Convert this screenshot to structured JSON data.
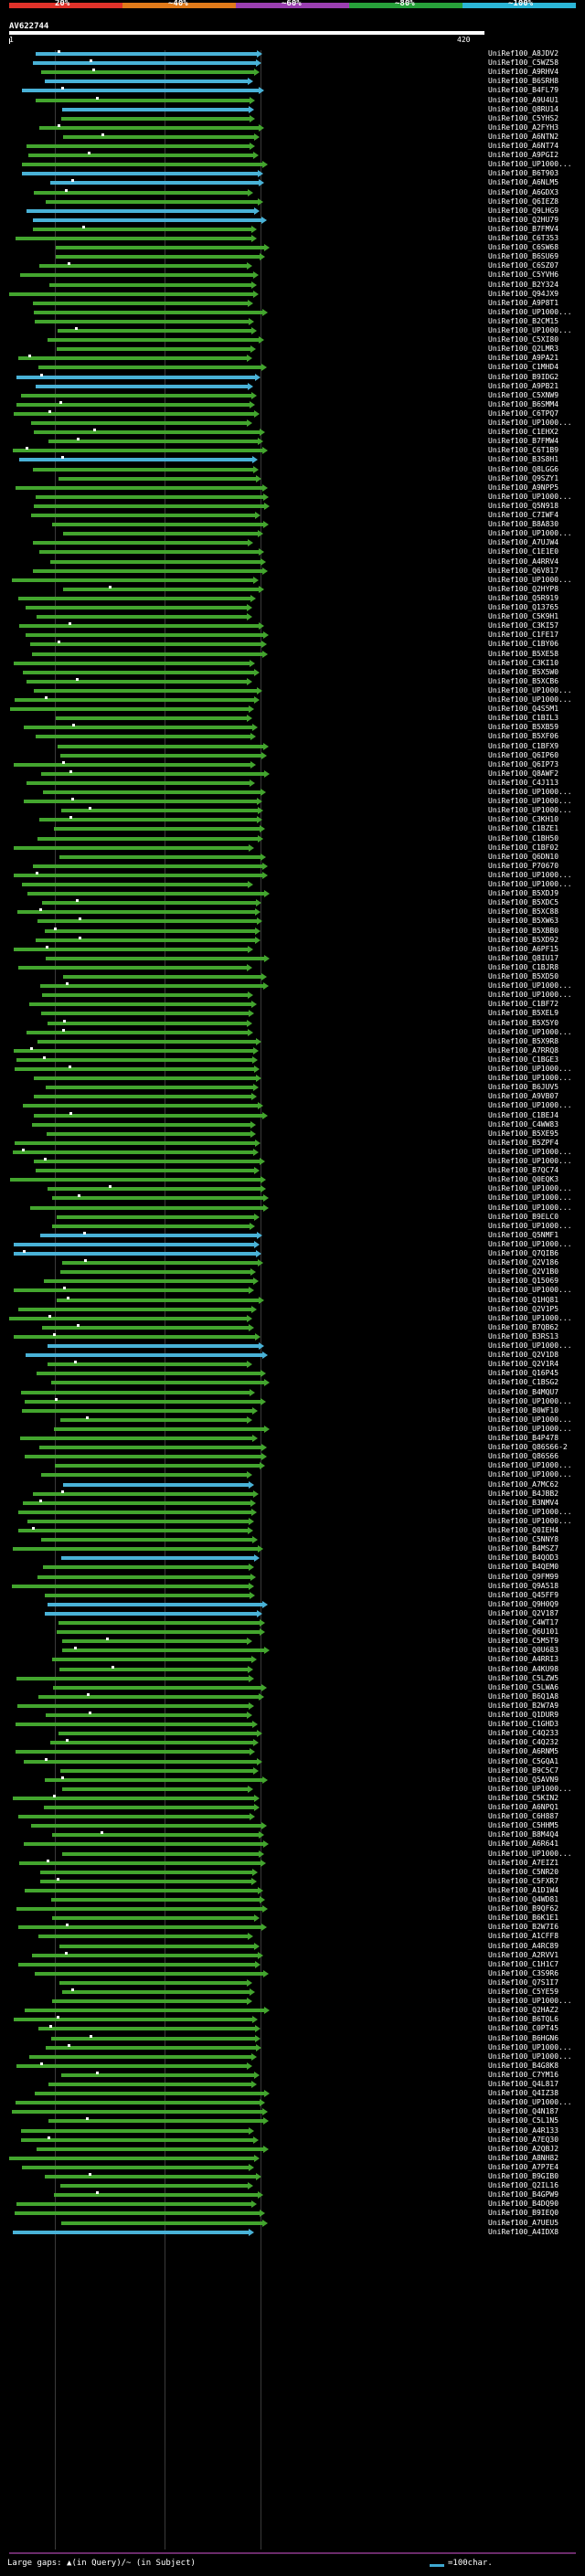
{
  "scale": {
    "labels": [
      "20%",
      "~40%",
      "~60%",
      "~80%",
      "~100%"
    ],
    "colors": [
      "#e0322a",
      "#e07a1a",
      "#9a3fb0",
      "#27a03a",
      "#2bb5d6"
    ]
  },
  "query": {
    "name": "AV622744",
    "start": "1",
    "end": "420"
  },
  "colors": {
    "green": "#43a52e",
    "blue": "#49b2d7",
    "line": "#3a3a3a"
  },
  "hits": [
    "UniRef100_A8JDV2",
    "UniRef100_C5WZ58",
    "UniRef100_A9RHV4",
    "UniRef100_B6SRH8",
    "UniRef100_B4FL79",
    "UniRef100_A9U4U1",
    "UniRef100_Q8RU14",
    "UniRef100_C5YHS2",
    "UniRef100_A2FYH3",
    "UniRef100_A6NTN2",
    "UniRef100_A6NT74",
    "UniRef100_A9PGI2",
    "UniRef100_UP1000...",
    "UniRef100_B6T903",
    "UniRef100_A6NLM5",
    "UniRef100_A6GDX3",
    "UniRef100_Q6IEZ8",
    "UniRef100_Q9LHG9",
    "UniRef100_Q2HU79",
    "UniRef100_B7FMV4",
    "UniRef100_C6T353",
    "UniRef100_C6SW68",
    "UniRef100_B6SU69",
    "UniRef100_C6SZ07",
    "UniRef100_C5YVH6",
    "UniRef100_B2Y324",
    "UniRef100_Q94JX9",
    "UniRef100_A9P8T1",
    "UniRef100_UP1000...",
    "UniRef100_B2CM15",
    "UniRef100_UP1000...",
    "UniRef100_C5XI80",
    "UniRef100_Q2LMR3",
    "UniRef100_A9PA21",
    "UniRef100_C1MHD4",
    "UniRef100_B9IDG2",
    "UniRef100_A9PB21",
    "UniRef100_C5XNW9",
    "UniRef100_B6SMM4",
    "UniRef100_C6TPQ7",
    "UniRef100_UP1000...",
    "UniRef100_C1EHX2",
    "UniRef100_B7FMW4",
    "UniRef100_C6T1B9",
    "UniRef100_B3S8H1",
    "UniRef100_Q8LGG6",
    "UniRef100_Q9SZY1",
    "UniRef100_A9NPP5",
    "UniRef100_UP1000...",
    "UniRef100_Q5N918",
    "UniRef100_C7IWF4",
    "UniRef100_B8A830",
    "UniRef100_UP1000...",
    "UniRef100_A7UJW4",
    "UniRef100_C1E1E0",
    "UniRef100_A4RRV4",
    "UniRef100_Q6V817",
    "UniRef100_UP1000...",
    "UniRef100_Q2HYP8",
    "UniRef100_Q5R919",
    "UniRef100_Q13765",
    "UniRef100_C5K9H1",
    "UniRef100_C3KI57",
    "UniRef100_C1FE17",
    "UniRef100_C1BY06",
    "UniRef100_B5XE58",
    "UniRef100_C3KI10",
    "UniRef100_B5X5W0",
    "UniRef100_B5XCB6",
    "UniRef100_UP1000...",
    "UniRef100_UP1000...",
    "UniRef100_Q4S5M1",
    "UniRef100_C1BIL3",
    "UniRef100_B5XB59",
    "UniRef100_B5XF06",
    "UniRef100_C1BFX9",
    "UniRef100_Q6IP60",
    "UniRef100_Q6IP73",
    "UniRef100_Q8AWF2",
    "UniRef100_C4J113",
    "UniRef100_UP1000...",
    "UniRef100_UP1000...",
    "UniRef100_UP1000...",
    "UniRef100_C3KH10",
    "UniRef100_C1BZE1",
    "UniRef100_C1BH50",
    "UniRef100_C1BF02",
    "UniRef100_Q6DN10",
    "UniRef100_P70670",
    "UniRef100_UP1000...",
    "UniRef100_UP1000...",
    "UniRef100_B5XDJ9",
    "UniRef100_B5XDC5",
    "UniRef100_B5XC88",
    "UniRef100_B5XW63",
    "UniRef100_B5XBB0",
    "UniRef100_B5XD92",
    "UniRef100_A6PF15",
    "UniRef100_Q8IU17",
    "UniRef100_C1BJR8",
    "UniRef100_B5XD50",
    "UniRef100_UP1000...",
    "UniRef100_UP1000...",
    "UniRef100_C1BF72",
    "UniRef100_B5XEL9",
    "UniRef100_B5X5Y0",
    "UniRef100_UP1000...",
    "UniRef100_B5X9R8",
    "UniRef100_A7RRQ8",
    "UniRef100_C1BGE3",
    "UniRef100_UP1000...",
    "UniRef100_UP1000...",
    "UniRef100_B6JUV5",
    "UniRef100_A9VB07",
    "UniRef100_UP1000...",
    "UniRef100_C1BEJ4",
    "UniRef100_C4WW83",
    "UniRef100_B5XE95",
    "UniRef100_B5ZPF4",
    "UniRef100_UP1000...",
    "UniRef100_UP1000...",
    "UniRef100_B7QC74",
    "UniRef100_Q0EQK3",
    "UniRef100_UP1000...",
    "UniRef100_UP1000...",
    "UniRef100_UP1000...",
    "UniRef100_B9ELC0",
    "UniRef100_UP1000...",
    "UniRef100_Q5NMF1",
    "UniRef100_UP1000...",
    "UniRef100_Q7QIB6",
    "UniRef100_Q2V186",
    "UniRef100_Q2V1B0",
    "UniRef100_Q15069",
    "UniRef100_UP1000...",
    "UniRef100_Q1HQ81",
    "UniRef100_Q2V1P5",
    "UniRef100_UP1000...",
    "UniRef100_B7QB62",
    "UniRef100_B3RS13",
    "UniRef100_UP1000...",
    "UniRef100_Q2V1D8",
    "UniRef100_Q2V1R4",
    "UniRef100_Q16P45",
    "UniRef100_C1BSG2",
    "UniRef100_B4MQU7",
    "UniRef100_UP1000...",
    "UniRef100_B0WF10",
    "UniRef100_UP1000...",
    "UniRef100_UP1000...",
    "UniRef100_B4P478",
    "UniRef100_Q86S66-2",
    "UniRef100_Q86S66",
    "UniRef100_UP1000...",
    "UniRef100_UP1000...",
    "UniRef100_A7MC62",
    "UniRef100_B4JBB2",
    "UniRef100_B3NMV4",
    "UniRef100_UP1000...",
    "UniRef100_UP1000...",
    "UniRef100_Q0IEH4",
    "UniRef100_C5NNY8",
    "UniRef100_B4MSZ7",
    "UniRef100_B4QOD3",
    "UniRef100_B4QEM0",
    "UniRef100_Q9FM99",
    "UniRef100_Q9A518",
    "UniRef100_Q45FF9",
    "UniRef100_Q9H0Q9",
    "UniRef100_Q2V187",
    "UniRef100_C4WT17",
    "UniRef100_Q6U101",
    "UniRef100_C5M5T9",
    "UniRef100_Q0U683",
    "UniRef100_A4RRI3",
    "UniRef100_A4KU98",
    "UniRef100_C5LZW5",
    "UniRef100_C5LWA6",
    "UniRef100_B6Q1A8",
    "UniRef100_B2W7A9",
    "UniRef100_Q1DUR9",
    "UniRef100_C1GHD3",
    "UniRef100_C4Q233",
    "UniRef100_C4Q232",
    "UniRef100_A6RNM5",
    "UniRef100_C5GQA1",
    "UniRef100_B9C5C7",
    "UniRef100_Q5AVN9",
    "UniRef100_UP1000...",
    "UniRef100_C5KIN2",
    "UniRef100_A6NPQ1",
    "UniRef100_C6H887",
    "UniRef100_C5HHM5",
    "UniRef100_B8M4Q4",
    "UniRef100_A6R641",
    "UniRef100_UP1000...",
    "UniRef100_A7EIZ1",
    "UniRef100_C5NR20",
    "UniRef100_C5FXR7",
    "UniRef100_A1D1W4",
    "UniRef100_Q4WD81",
    "UniRef100_B9QF62",
    "UniRef100_B6K1E1",
    "UniRef100_B2W7I6",
    "UniRef100_A1CFF8",
    "UniRef100_A4RC89",
    "UniRef100_A2RVV1",
    "UniRef100_C1H1C7",
    "UniRef100_C3S9R6",
    "UniRef100_Q7S1I7",
    "UniRef100_C5YE59",
    "UniRef100_UP1000...",
    "UniRef100_Q2HAZ2",
    "UniRef100_B6TQL6",
    "UniRef100_C0PT45",
    "UniRef100_B6HGN6",
    "UniRef100_UP1000...",
    "UniRef100_UP1000...",
    "UniRef100_B4G8K8",
    "UniRef100_C7YM16",
    "UniRef100_Q4L817",
    "UniRef100_Q4IZ38",
    "UniRef100_UP1000...",
    "UniRef100_Q4N187",
    "UniRef100_C5L1N5",
    "UniRef100_A4R133",
    "UniRef100_A7EQ30",
    "UniRef100_A2QBJ2",
    "UniRef100_A8NH82",
    "UniRef100_A7P7E4",
    "UniRef100_B9GIB0",
    "UniRef100_Q2IL16",
    "UniRef100_B4GPW9",
    "UniRef100_B4DQ90",
    "UniRef100_B9IEQ0",
    "UniRef100_A7UEU5",
    "UniRef100_A4IDX8"
  ]
}
